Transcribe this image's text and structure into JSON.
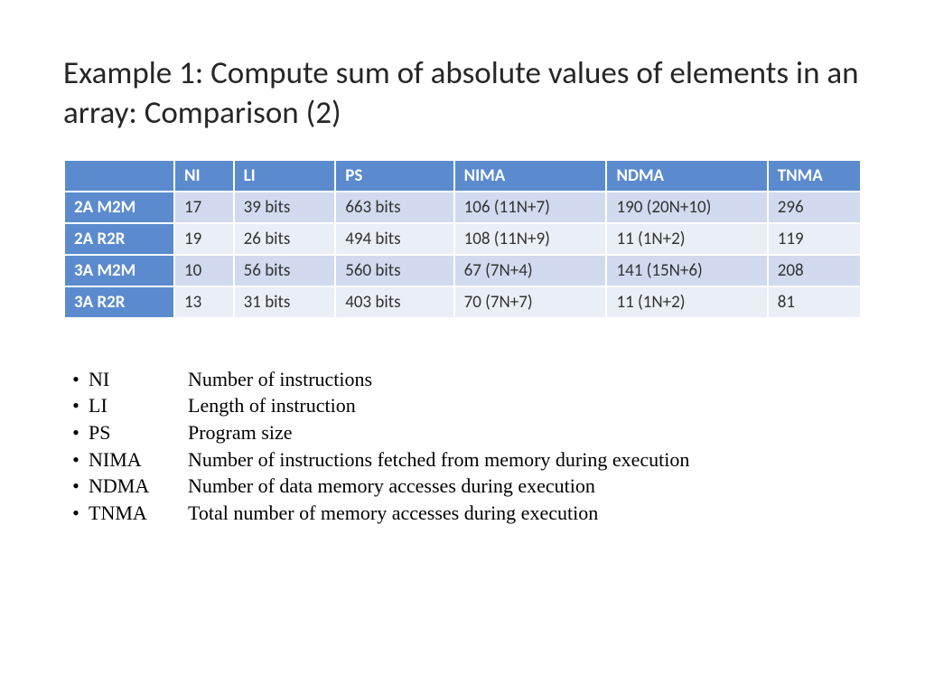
{
  "title_plain": "Example 1: Compute sum of absolute values of elements in an array: ",
  "title_bold": "Comparison (2)",
  "table": {
    "header_bg": "#5b8bce",
    "rowhead_bg": "#5b8bce",
    "row_bg_a": "#d1daee",
    "row_bg_b": "#eaeef7",
    "text_color_data": "#333333",
    "columns": [
      "",
      "NI",
      "LI",
      "PS",
      "NIMA",
      "NDMA",
      "TNMA"
    ],
    "col_widths_pct": [
      13,
      7,
      12,
      14,
      18,
      19,
      11
    ],
    "rows": [
      {
        "head": "2A M2M",
        "cells": [
          "17",
          "39 bits",
          "663 bits",
          "106 (11N+7)",
          "190 (20N+10)",
          "296"
        ]
      },
      {
        "head": "2A R2R",
        "cells": [
          "19",
          "26 bits",
          "494 bits",
          "108 (11N+9)",
          "11 (1N+2)",
          "119"
        ]
      },
      {
        "head": "3A M2M",
        "cells": [
          "10",
          "56 bits",
          "560 bits",
          "67 (7N+4)",
          "141 (15N+6)",
          "208"
        ]
      },
      {
        "head": "3A R2R",
        "cells": [
          "13",
          "31 bits",
          "403 bits",
          "70 (7N+7)",
          "11 (1N+2)",
          "81"
        ]
      }
    ]
  },
  "legend": [
    {
      "abbr": "NI",
      "desc": "Number of instructions"
    },
    {
      "abbr": "LI",
      "desc": "Length of instruction"
    },
    {
      "abbr": "PS",
      "desc": "Program size"
    },
    {
      "abbr": "NIMA",
      "desc": "Number of instructions fetched from memory during execution"
    },
    {
      "abbr": "NDMA",
      "desc": "Number of data memory accesses during execution"
    },
    {
      "abbr": "TNMA",
      "desc": "Total number of memory accesses during execution"
    }
  ],
  "bullet_char": "•"
}
